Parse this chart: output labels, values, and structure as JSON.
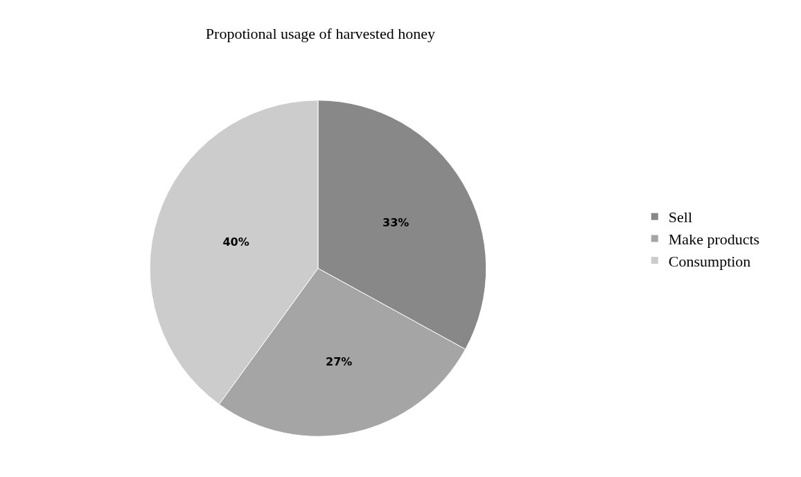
{
  "chart_data": {
    "type": "pie",
    "title": "Propotional usage of harvested honey",
    "categories": [
      "Sell",
      "Make products",
      "Consumption"
    ],
    "values": [
      33,
      27,
      40
    ],
    "colors": [
      "#888888",
      "#a5a5a5",
      "#cccccc"
    ],
    "value_labels": [
      "33%",
      "27%",
      "40%"
    ],
    "legend": "right"
  }
}
